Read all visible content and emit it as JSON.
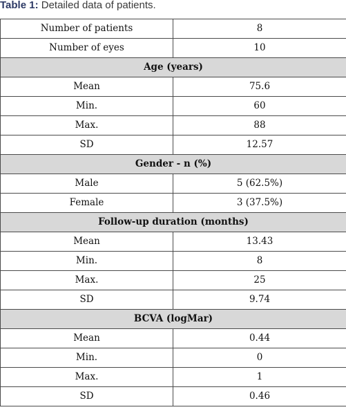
{
  "caption": {
    "label": "Table 1:",
    "text": " Detailed data of patients."
  },
  "summary": [
    {
      "label": "Number of patients",
      "value": "8"
    },
    {
      "label": "Number of eyes",
      "value": "10"
    }
  ],
  "sections": [
    {
      "title": "Age (years)",
      "rows": [
        {
          "label": "Mean",
          "value": "75.6"
        },
        {
          "label": "Min.",
          "value": "60"
        },
        {
          "label": "Max.",
          "value": "88"
        },
        {
          "label": "SD",
          "value": "12.57"
        }
      ]
    },
    {
      "title": "Gender - n (%)",
      "rows": [
        {
          "label": "Male",
          "value": "5 (62.5%)"
        },
        {
          "label": "Female",
          "value": "3 (37.5%)"
        }
      ]
    },
    {
      "title": "Follow-up duration (months)",
      "rows": [
        {
          "label": "Mean",
          "value": "13.43"
        },
        {
          "label": "Min.",
          "value": "8"
        },
        {
          "label": "Max.",
          "value": "25"
        },
        {
          "label": "SD",
          "value": "9.74"
        }
      ]
    },
    {
      "title": "BCVA (logMar)",
      "rows": [
        {
          "label": "Mean",
          "value": "0.44"
        },
        {
          "label": "Min.",
          "value": "0"
        },
        {
          "label": "Max.",
          "value": "1"
        },
        {
          "label": "SD",
          "value": "0.46"
        }
      ]
    }
  ]
}
